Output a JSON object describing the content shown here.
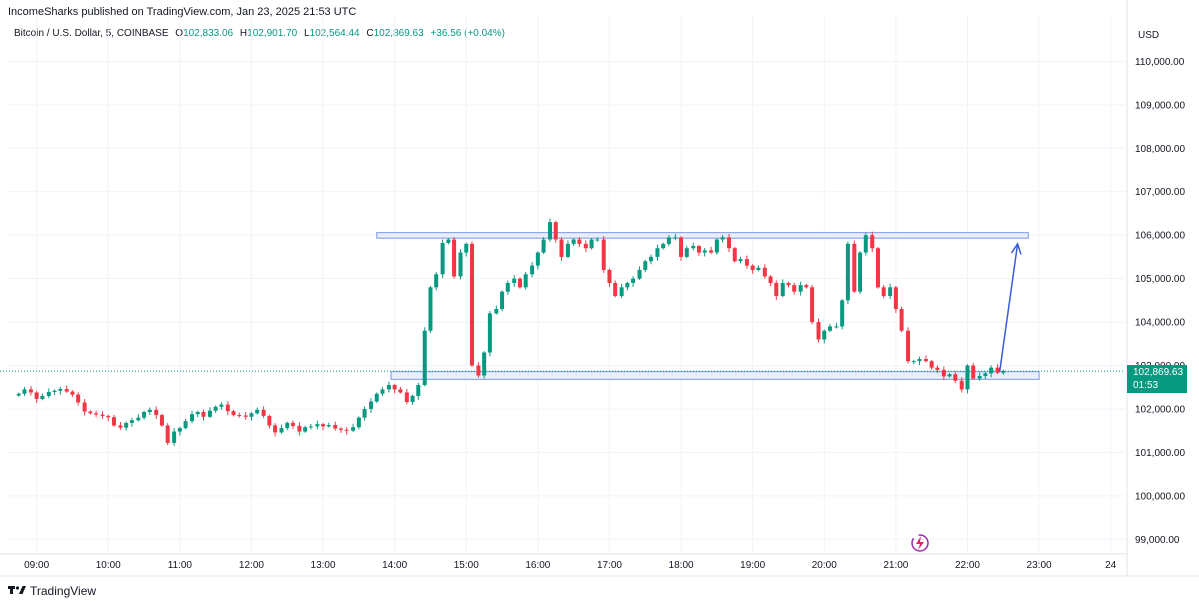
{
  "header": {
    "published": "IncomeSharks published on TradingView.com, Jan 23, 2025 21:53 UTC",
    "symbol": "Bitcoin / U.S. Dollar, 5, COINBASE",
    "open_label": "O",
    "open": "102,833.06",
    "high_label": "H",
    "high": "102,901.70",
    "low_label": "L",
    "low": "102,564.44",
    "close_label": "C",
    "close": "102,869.63",
    "change": "+36.56 (+0.04%)"
  },
  "axis": {
    "currency": "USD",
    "price_tag": {
      "price": "102,869.63",
      "countdown": "01:53"
    }
  },
  "footer": {
    "brand": "TradingView"
  },
  "colors": {
    "up": "#089981",
    "down": "#f23645",
    "zone_border": "#8fa8e8",
    "zone_fill": "#e8eefc",
    "arrow": "#3a5bd9",
    "price_tag": "#089981"
  },
  "icons": {
    "brand_icon": "tradingview-logo-icon",
    "watermark_icon": "lightning-circle-icon"
  },
  "chart_data": {
    "type": "candlestick",
    "timeframe": "5",
    "ylim": [
      98800,
      110400
    ],
    "y_ticks": [
      99000,
      100000,
      101000,
      102000,
      103000,
      104000,
      105000,
      106000,
      107000,
      108000,
      109000,
      110000
    ],
    "y_tick_labels": [
      "99,000.00",
      "100,000.00",
      "101,000.00",
      "102,000.00",
      "103,000.00",
      "104,000.00",
      "105,000.00",
      "106,000.00",
      "107,000.00",
      "108,000.00",
      "109,000.00",
      "110,000.00"
    ],
    "x_tick_labels": [
      "09:00",
      "10:00",
      "11:00",
      "12:00",
      "13:00",
      "14:00",
      "15:00",
      "16:00",
      "17:00",
      "18:00",
      "19:00",
      "20:00",
      "21:00",
      "22:00",
      "23:00",
      "24"
    ],
    "x_tick_hours": [
      9,
      10,
      11,
      12,
      13,
      14,
      15,
      16,
      17,
      18,
      19,
      20,
      21,
      22,
      23,
      24
    ],
    "x_range_hours": [
      8.6,
      24.2
    ],
    "zones": [
      {
        "name": "resistance",
        "t_start": 13.75,
        "t_end": 22.85,
        "low": 105930,
        "high": 106060
      },
      {
        "name": "support",
        "t_start": 13.95,
        "t_end": 23.0,
        "low": 102680,
        "high": 102860
      }
    ],
    "arrow": {
      "t_start": 22.45,
      "p_start": 102860,
      "t_end": 22.7,
      "p_end": 105800
    },
    "last_price": 102869.63,
    "candle_closes": [
      [
        8.75,
        102350
      ],
      [
        8.83,
        102450
      ],
      [
        8.92,
        102380
      ],
      [
        9.0,
        102230
      ],
      [
        9.08,
        102300
      ],
      [
        9.17,
        102390
      ],
      [
        9.25,
        102420
      ],
      [
        9.33,
        102460
      ],
      [
        9.42,
        102400
      ],
      [
        9.5,
        102330
      ],
      [
        9.58,
        102150
      ],
      [
        9.67,
        101940
      ],
      [
        9.75,
        101900
      ],
      [
        9.83,
        101870
      ],
      [
        9.92,
        101840
      ],
      [
        10.0,
        101810
      ],
      [
        10.08,
        101620
      ],
      [
        10.17,
        101570
      ],
      [
        10.25,
        101680
      ],
      [
        10.33,
        101740
      ],
      [
        10.42,
        101800
      ],
      [
        10.5,
        101930
      ],
      [
        10.58,
        101980
      ],
      [
        10.67,
        101860
      ],
      [
        10.75,
        101620
      ],
      [
        10.83,
        101220
      ],
      [
        10.92,
        101480
      ],
      [
        11.0,
        101560
      ],
      [
        11.08,
        101720
      ],
      [
        11.17,
        101880
      ],
      [
        11.25,
        101930
      ],
      [
        11.33,
        101820
      ],
      [
        11.42,
        101960
      ],
      [
        11.5,
        102050
      ],
      [
        11.58,
        102100
      ],
      [
        11.67,
        101950
      ],
      [
        11.75,
        101860
      ],
      [
        11.83,
        101850
      ],
      [
        11.92,
        101820
      ],
      [
        12.0,
        101900
      ],
      [
        12.08,
        101980
      ],
      [
        12.17,
        101840
      ],
      [
        12.25,
        101620
      ],
      [
        12.33,
        101460
      ],
      [
        12.42,
        101560
      ],
      [
        12.5,
        101680
      ],
      [
        12.58,
        101610
      ],
      [
        12.67,
        101480
      ],
      [
        12.75,
        101580
      ],
      [
        12.83,
        101600
      ],
      [
        12.92,
        101650
      ],
      [
        13.0,
        101600
      ],
      [
        13.08,
        101630
      ],
      [
        13.17,
        101550
      ],
      [
        13.25,
        101520
      ],
      [
        13.33,
        101500
      ],
      [
        13.42,
        101580
      ],
      [
        13.5,
        101800
      ],
      [
        13.58,
        102000
      ],
      [
        13.67,
        102170
      ],
      [
        13.75,
        102350
      ],
      [
        13.83,
        102450
      ],
      [
        13.92,
        102550
      ],
      [
        14.0,
        102450
      ],
      [
        14.08,
        102380
      ],
      [
        14.17,
        102160
      ],
      [
        14.25,
        102300
      ],
      [
        14.33,
        102550
      ],
      [
        14.42,
        103800
      ],
      [
        14.5,
        104800
      ],
      [
        14.58,
        105100
      ],
      [
        14.67,
        105820
      ],
      [
        14.75,
        105900
      ],
      [
        14.83,
        105050
      ],
      [
        14.92,
        105600
      ],
      [
        15.0,
        105800
      ],
      [
        15.08,
        103000
      ],
      [
        15.17,
        102770
      ],
      [
        15.25,
        103300
      ],
      [
        15.33,
        104200
      ],
      [
        15.42,
        104300
      ],
      [
        15.5,
        104700
      ],
      [
        15.58,
        104900
      ],
      [
        15.67,
        105000
      ],
      [
        15.75,
        104800
      ],
      [
        15.83,
        105100
      ],
      [
        15.92,
        105300
      ],
      [
        16.0,
        105600
      ],
      [
        16.08,
        105900
      ],
      [
        16.17,
        106300
      ],
      [
        16.25,
        105900
      ],
      [
        16.33,
        105500
      ],
      [
        16.42,
        105800
      ],
      [
        16.5,
        105900
      ],
      [
        16.58,
        105800
      ],
      [
        16.67,
        105700
      ],
      [
        16.75,
        105900
      ],
      [
        16.83,
        105900
      ],
      [
        16.92,
        105200
      ],
      [
        17.0,
        104900
      ],
      [
        17.08,
        104600
      ],
      [
        17.17,
        104800
      ],
      [
        17.25,
        104900
      ],
      [
        17.33,
        105000
      ],
      [
        17.42,
        105200
      ],
      [
        17.5,
        105400
      ],
      [
        17.58,
        105500
      ],
      [
        17.67,
        105700
      ],
      [
        17.75,
        105800
      ],
      [
        17.83,
        105950
      ],
      [
        17.92,
        105950
      ],
      [
        18.0,
        105500
      ],
      [
        18.08,
        105700
      ],
      [
        18.17,
        105750
      ],
      [
        18.25,
        105600
      ],
      [
        18.33,
        105650
      ],
      [
        18.42,
        105600
      ],
      [
        18.5,
        105900
      ],
      [
        18.58,
        105950
      ],
      [
        18.67,
        105700
      ],
      [
        18.75,
        105400
      ],
      [
        18.83,
        105450
      ],
      [
        18.92,
        105300
      ],
      [
        19.0,
        105200
      ],
      [
        19.08,
        105250
      ],
      [
        19.17,
        105050
      ],
      [
        19.25,
        104900
      ],
      [
        19.33,
        104600
      ],
      [
        19.42,
        104900
      ],
      [
        19.5,
        104850
      ],
      [
        19.58,
        104700
      ],
      [
        19.67,
        104850
      ],
      [
        19.75,
        104800
      ],
      [
        19.83,
        104000
      ],
      [
        19.92,
        103600
      ],
      [
        20.0,
        103800
      ],
      [
        20.08,
        103900
      ],
      [
        20.17,
        103900
      ],
      [
        20.25,
        104500
      ],
      [
        20.33,
        105800
      ],
      [
        20.42,
        104700
      ],
      [
        20.5,
        105600
      ],
      [
        20.58,
        106000
      ],
      [
        20.67,
        105700
      ],
      [
        20.75,
        104800
      ],
      [
        20.83,
        104600
      ],
      [
        20.92,
        104800
      ],
      [
        21.0,
        104300
      ],
      [
        21.08,
        103800
      ],
      [
        21.17,
        103100
      ],
      [
        21.25,
        103100
      ],
      [
        21.33,
        103150
      ],
      [
        21.42,
        103100
      ],
      [
        21.5,
        102950
      ],
      [
        21.58,
        102900
      ],
      [
        21.67,
        102750
      ],
      [
        21.75,
        102800
      ],
      [
        21.83,
        102650
      ],
      [
        21.92,
        102450
      ],
      [
        22.0,
        103000
      ],
      [
        22.08,
        102700
      ],
      [
        22.17,
        102760
      ],
      [
        22.25,
        102820
      ],
      [
        22.33,
        102950
      ],
      [
        22.42,
        102833
      ],
      [
        22.5,
        102870
      ]
    ]
  }
}
